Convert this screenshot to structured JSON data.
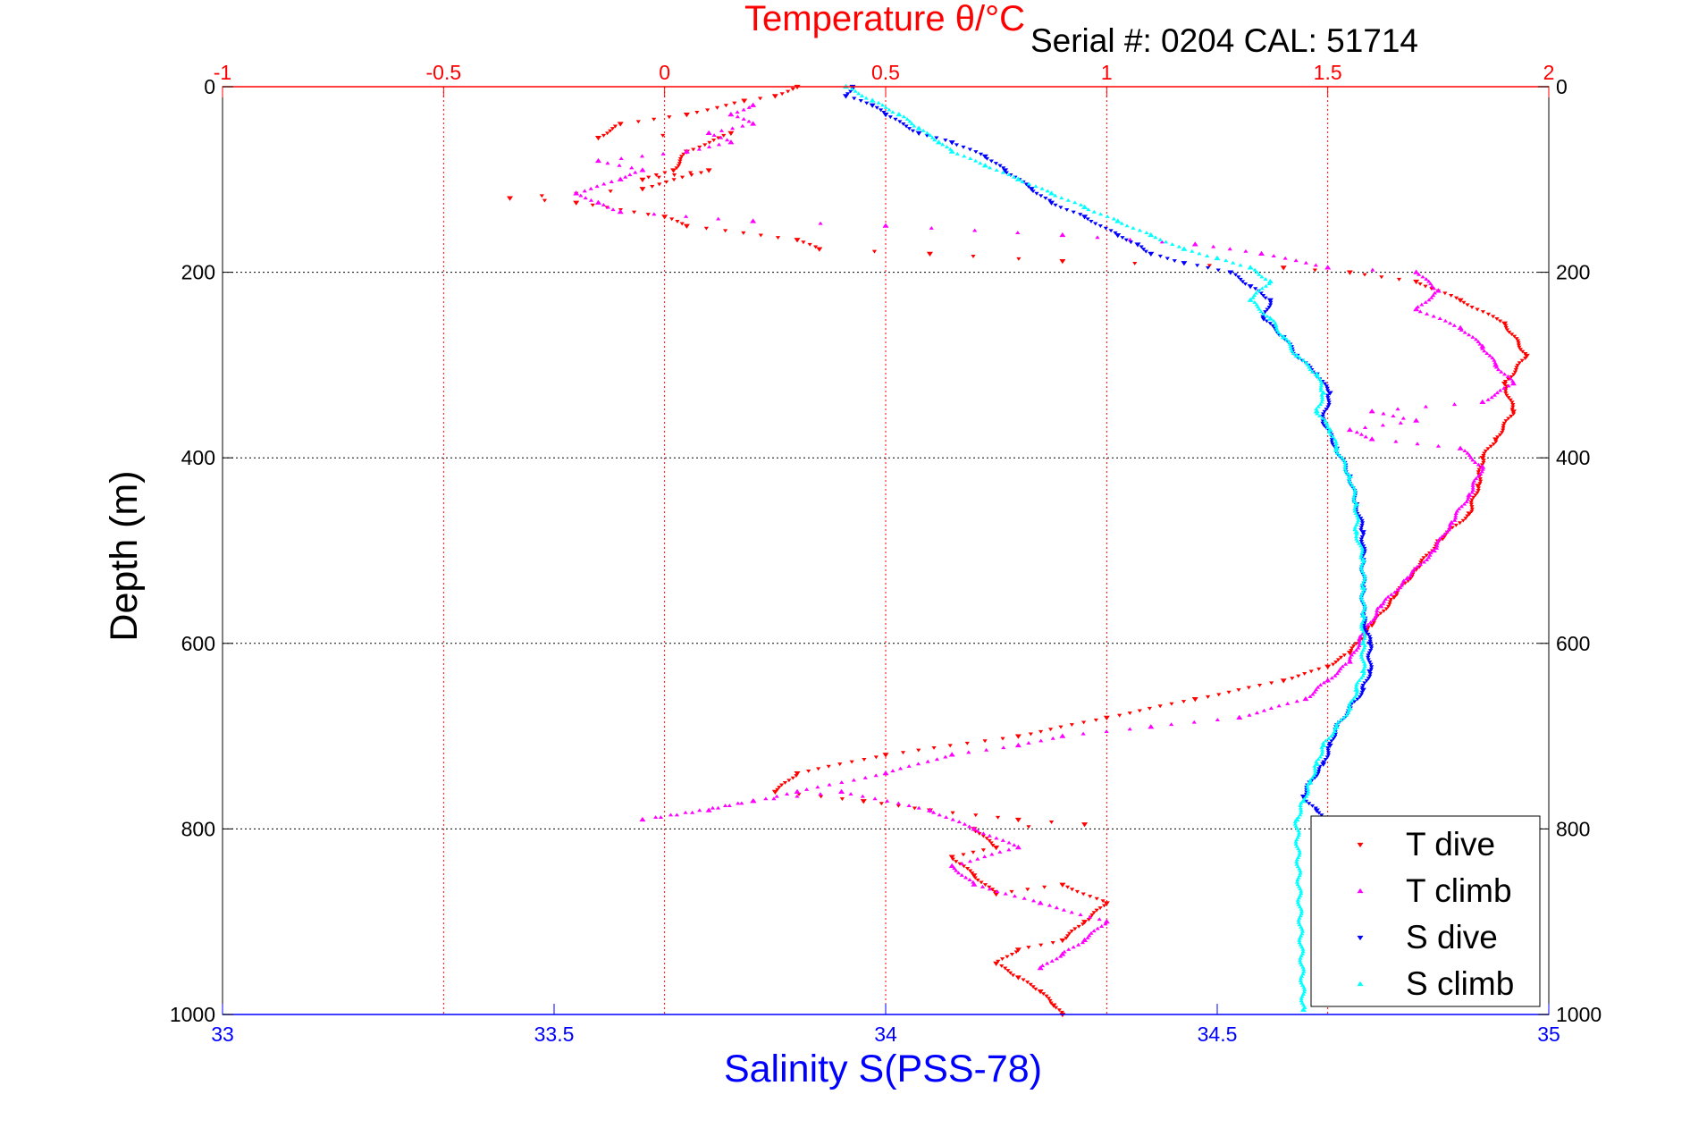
{
  "header": {
    "serial": "Serial #: 0204  CAL: 51714"
  },
  "chart_data": {
    "type": "scatter",
    "title": "",
    "top_axis": {
      "label": "Temperature θ/°C",
      "range": [
        -1,
        2
      ],
      "ticks": [
        -1,
        -0.5,
        0,
        0.5,
        1,
        1.5,
        2
      ],
      "tick_labels": [
        "-1",
        "-0.5",
        "0",
        "0.5",
        "1",
        "1.5",
        "2"
      ],
      "color": "#ff0000"
    },
    "bottom_axis": {
      "label": "Salinity S(PSS-78)",
      "range": [
        33,
        35
      ],
      "ticks": [
        33,
        33.5,
        34,
        34.5,
        35
      ],
      "tick_labels": [
        "33",
        "33.5",
        "34",
        "34.5",
        "35"
      ],
      "color": "#0000ff"
    },
    "y_axis": {
      "label": "Depth (m)",
      "range": [
        0,
        1000
      ],
      "reversed": true,
      "ticks": [
        0,
        200,
        400,
        600,
        800,
        1000
      ],
      "tick_labels": [
        "0",
        "200",
        "400",
        "600",
        "800",
        "1000"
      ]
    },
    "grid": true,
    "legend": {
      "position": "bottom-right"
    },
    "series": [
      {
        "name": "T dive",
        "axis": "temperature",
        "color": "#ff0000",
        "marker": "triangle-down",
        "points": [
          [
            0.3,
            0
          ],
          [
            0.25,
            10
          ],
          [
            0.18,
            15
          ],
          [
            0.05,
            30
          ],
          [
            -0.1,
            40
          ],
          [
            -0.15,
            55
          ],
          [
            0.15,
            50
          ],
          [
            0.05,
            70
          ],
          [
            0.02,
            90
          ],
          [
            -0.05,
            100
          ],
          [
            0.1,
            90
          ],
          [
            -0.05,
            110
          ],
          [
            -0.35,
            120
          ],
          [
            -0.2,
            125
          ],
          [
            0.0,
            140
          ],
          [
            0.05,
            150
          ],
          [
            0.3,
            165
          ],
          [
            0.35,
            175
          ],
          [
            0.6,
            180
          ],
          [
            0.9,
            188
          ],
          [
            1.4,
            195
          ],
          [
            1.55,
            200
          ],
          [
            1.7,
            210
          ],
          [
            1.8,
            230
          ],
          [
            1.9,
            255
          ],
          [
            1.95,
            290
          ],
          [
            1.9,
            320
          ],
          [
            1.92,
            350
          ],
          [
            1.88,
            380
          ],
          [
            1.85,
            400
          ],
          [
            1.84,
            430
          ],
          [
            1.82,
            460
          ],
          [
            1.75,
            490
          ],
          [
            1.7,
            520
          ],
          [
            1.65,
            550
          ],
          [
            1.6,
            580
          ],
          [
            1.55,
            610
          ],
          [
            1.5,
            625
          ],
          [
            1.4,
            640
          ],
          [
            1.2,
            660
          ],
          [
            1.0,
            680
          ],
          [
            0.8,
            700
          ],
          [
            0.5,
            720
          ],
          [
            0.3,
            740
          ],
          [
            0.25,
            760
          ],
          [
            0.45,
            770
          ],
          [
            0.6,
            780
          ],
          [
            0.8,
            790
          ],
          [
            0.95,
            795
          ],
          [
            0.7,
            800
          ],
          [
            0.75,
            820
          ],
          [
            0.65,
            830
          ],
          [
            0.7,
            850
          ],
          [
            0.75,
            870
          ],
          [
            0.9,
            860
          ],
          [
            1.0,
            880
          ],
          [
            0.95,
            900
          ],
          [
            0.9,
            920
          ],
          [
            0.8,
            930
          ],
          [
            0.75,
            945
          ],
          [
            0.8,
            960
          ],
          [
            0.85,
            975
          ],
          [
            0.88,
            990
          ],
          [
            0.9,
            1000
          ]
        ]
      },
      {
        "name": "T climb",
        "axis": "temperature",
        "color": "#ff00ff",
        "marker": "triangle-up",
        "points": [
          [
            0.2,
            20
          ],
          [
            0.15,
            30
          ],
          [
            0.2,
            40
          ],
          [
            0.1,
            50
          ],
          [
            0.15,
            60
          ],
          [
            0.05,
            70
          ],
          [
            -0.15,
            80
          ],
          [
            -0.05,
            90
          ],
          [
            -0.1,
            100
          ],
          [
            -0.2,
            115
          ],
          [
            -0.15,
            125
          ],
          [
            -0.1,
            135
          ],
          [
            0.2,
            145
          ],
          [
            0.5,
            150
          ],
          [
            0.9,
            160
          ],
          [
            1.2,
            170
          ],
          [
            1.35,
            180
          ],
          [
            1.5,
            195
          ],
          [
            1.7,
            200
          ],
          [
            1.75,
            220
          ],
          [
            1.7,
            240
          ],
          [
            1.8,
            260
          ],
          [
            1.85,
            280
          ],
          [
            1.88,
            300
          ],
          [
            1.92,
            320
          ],
          [
            1.85,
            340
          ],
          [
            1.6,
            350
          ],
          [
            1.7,
            360
          ],
          [
            1.55,
            370
          ],
          [
            1.6,
            380
          ],
          [
            1.8,
            390
          ],
          [
            1.85,
            410
          ],
          [
            1.82,
            440
          ],
          [
            1.78,
            470
          ],
          [
            1.74,
            500
          ],
          [
            1.68,
            530
          ],
          [
            1.62,
            560
          ],
          [
            1.58,
            590
          ],
          [
            1.55,
            620
          ],
          [
            1.5,
            640
          ],
          [
            1.45,
            660
          ],
          [
            1.3,
            680
          ],
          [
            1.1,
            690
          ],
          [
            0.9,
            700
          ],
          [
            0.8,
            710
          ],
          [
            0.65,
            720
          ],
          [
            0.5,
            740
          ],
          [
            0.3,
            760
          ],
          [
            0.1,
            780
          ],
          [
            -0.05,
            790
          ],
          [
            0.2,
            770
          ],
          [
            0.4,
            760
          ],
          [
            0.6,
            780
          ],
          [
            0.7,
            800
          ],
          [
            0.8,
            820
          ],
          [
            0.65,
            840
          ],
          [
            0.7,
            860
          ],
          [
            0.85,
            880
          ],
          [
            1.0,
            900
          ],
          [
            0.95,
            920
          ],
          [
            0.9,
            935
          ],
          [
            0.85,
            950
          ]
        ]
      },
      {
        "name": "S dive",
        "axis": "salinity",
        "color": "#0000ff",
        "marker": "triangle-down",
        "points": [
          [
            33.95,
            0
          ],
          [
            33.94,
            10
          ],
          [
            33.98,
            20
          ],
          [
            34.0,
            30
          ],
          [
            34.05,
            50
          ],
          [
            34.1,
            60
          ],
          [
            34.15,
            75
          ],
          [
            34.18,
            90
          ],
          [
            34.22,
            110
          ],
          [
            34.25,
            125
          ],
          [
            34.3,
            140
          ],
          [
            34.35,
            160
          ],
          [
            34.38,
            170
          ],
          [
            34.4,
            180
          ],
          [
            34.45,
            190
          ],
          [
            34.52,
            200
          ],
          [
            34.55,
            215
          ],
          [
            34.58,
            230
          ],
          [
            34.57,
            250
          ],
          [
            34.6,
            270
          ],
          [
            34.62,
            290
          ],
          [
            34.65,
            310
          ],
          [
            34.67,
            330
          ],
          [
            34.66,
            360
          ],
          [
            34.68,
            390
          ],
          [
            34.7,
            420
          ],
          [
            34.71,
            450
          ],
          [
            34.72,
            480
          ],
          [
            34.72,
            510
          ],
          [
            34.72,
            540
          ],
          [
            34.72,
            570
          ],
          [
            34.73,
            600
          ],
          [
            34.73,
            630
          ],
          [
            34.72,
            650
          ],
          [
            34.7,
            670
          ],
          [
            34.68,
            690
          ],
          [
            34.67,
            710
          ],
          [
            34.66,
            730
          ],
          [
            34.64,
            750
          ],
          [
            34.63,
            765
          ],
          [
            34.65,
            780
          ],
          [
            34.67,
            790
          ]
        ]
      },
      {
        "name": "S climb",
        "axis": "salinity",
        "color": "#00ffff",
        "marker": "triangle-up",
        "points": [
          [
            33.94,
            0
          ],
          [
            33.98,
            15
          ],
          [
            34.02,
            30
          ],
          [
            34.05,
            45
          ],
          [
            34.08,
            60
          ],
          [
            34.1,
            70
          ],
          [
            34.15,
            85
          ],
          [
            34.2,
            100
          ],
          [
            34.25,
            115
          ],
          [
            34.3,
            130
          ],
          [
            34.35,
            145
          ],
          [
            34.4,
            160
          ],
          [
            34.45,
            175
          ],
          [
            34.5,
            185
          ],
          [
            34.55,
            195
          ],
          [
            34.58,
            210
          ],
          [
            34.55,
            230
          ],
          [
            34.58,
            250
          ],
          [
            34.6,
            270
          ],
          [
            34.62,
            290
          ],
          [
            34.65,
            310
          ],
          [
            34.66,
            330
          ],
          [
            34.65,
            350
          ],
          [
            34.67,
            370
          ],
          [
            34.68,
            390
          ],
          [
            34.7,
            420
          ],
          [
            34.71,
            450
          ],
          [
            34.71,
            480
          ],
          [
            34.72,
            510
          ],
          [
            34.72,
            540
          ],
          [
            34.72,
            570
          ],
          [
            34.72,
            600
          ],
          [
            34.72,
            630
          ],
          [
            34.71,
            650
          ],
          [
            34.7,
            670
          ],
          [
            34.68,
            690
          ],
          [
            34.66,
            710
          ],
          [
            34.65,
            730
          ],
          [
            34.64,
            750
          ],
          [
            34.63,
            770
          ],
          [
            34.62,
            790
          ],
          [
            34.63,
            995
          ]
        ]
      }
    ]
  }
}
